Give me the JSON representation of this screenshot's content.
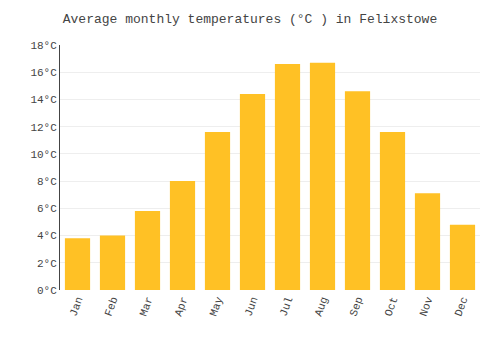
{
  "chart_data": {
    "type": "bar",
    "title": "Average monthly temperatures (°C ) in Felixstowe",
    "categories": [
      "Jan",
      "Feb",
      "Mar",
      "Apr",
      "May",
      "Jun",
      "Jul",
      "Aug",
      "Sep",
      "Oct",
      "Nov",
      "Dec"
    ],
    "values": [
      3.8,
      4.0,
      5.8,
      8.0,
      11.6,
      14.4,
      16.6,
      16.7,
      14.6,
      11.6,
      7.1,
      4.8
    ],
    "color": "#FFC125",
    "ylim": [
      0,
      18
    ],
    "yticks": [
      {
        "value": 0,
        "label": "0°C"
      },
      {
        "value": 2,
        "label": "2°C"
      },
      {
        "value": 4,
        "label": "4°C"
      },
      {
        "value": 6,
        "label": "6°C"
      },
      {
        "value": 8,
        "label": "8°C"
      },
      {
        "value": 10,
        "label": "10°C"
      },
      {
        "value": 12,
        "label": "12°C"
      },
      {
        "value": 14,
        "label": "14°C"
      },
      {
        "value": 16,
        "label": "16°C"
      },
      {
        "value": 18,
        "label": "18°C"
      }
    ],
    "grid": true
  }
}
